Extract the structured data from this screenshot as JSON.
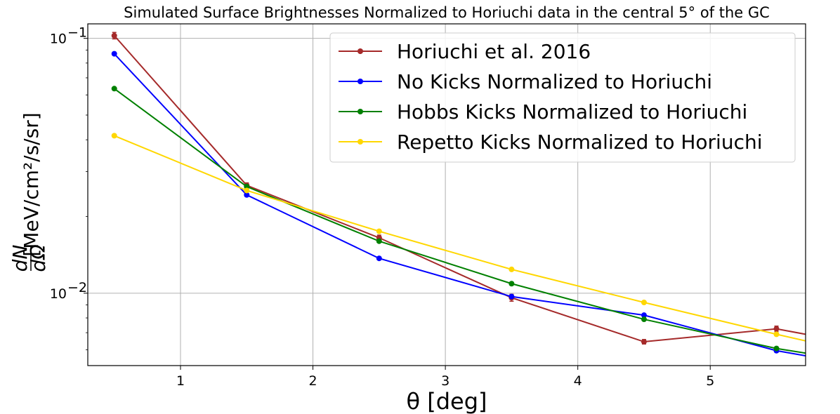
{
  "chart_data": {
    "type": "line",
    "title": "Simulated Surface Brightnesses Normalized to Horiuchi data in the central 5° of the GC",
    "xlabel": "θ [deg]",
    "ylabel": "[MeV/cm²/s/sr]",
    "ylabel_fraction": {
      "numerator": "dN",
      "denominator": "dΩ"
    },
    "xlim": [
      0.3,
      5.72
    ],
    "ylim": [
      0.0052,
      0.114
    ],
    "yscale": "log",
    "grid": true,
    "legend_position": "top-right",
    "x_ticks": [
      1,
      2,
      3,
      4,
      5
    ],
    "y_ticks": [
      {
        "value": 0.1,
        "label_base": "10",
        "label_exp": "−1"
      },
      {
        "value": 0.01,
        "label_base": "10",
        "label_exp": "−2"
      }
    ],
    "series": [
      {
        "name": "Horiuchi et al. 2016",
        "color": "#a52a2a",
        "errorbars": true,
        "x": [
          0.5,
          1.5,
          2.5,
          3.5,
          4.5,
          5.5,
          5.72
        ],
        "y": [
          0.1025,
          0.0265,
          0.0165,
          0.0096,
          0.00645,
          0.00725,
          0.0069
        ],
        "err": [
          0.003,
          0.0006,
          0.0004,
          0.0003,
          0.00013,
          0.00018,
          0
        ],
        "markers": [
          true,
          true,
          true,
          true,
          true,
          true,
          false
        ]
      },
      {
        "name": "No Kicks Normalized to Horiuchi",
        "color": "#0000ff",
        "x": [
          0.5,
          1.5,
          2.5,
          3.5,
          4.5,
          5.5,
          5.72
        ],
        "y": [
          0.087,
          0.0243,
          0.0137,
          0.0097,
          0.0082,
          0.00595,
          0.00568
        ],
        "markers": [
          true,
          true,
          true,
          true,
          true,
          true,
          false
        ]
      },
      {
        "name": "Hobbs Kicks Normalized to Horiuchi",
        "color": "#008000",
        "x": [
          0.5,
          1.5,
          2.5,
          3.5,
          4.5,
          5.5,
          5.72
        ],
        "y": [
          0.0635,
          0.0262,
          0.016,
          0.0109,
          0.0079,
          0.00607,
          0.00582
        ],
        "markers": [
          true,
          true,
          true,
          true,
          true,
          true,
          false
        ]
      },
      {
        "name": "Repetto Kicks Normalized to Horiuchi",
        "color": "#ffd700",
        "x": [
          0.5,
          1.5,
          2.5,
          3.5,
          4.5,
          5.5,
          5.72
        ],
        "y": [
          0.0415,
          0.0253,
          0.0175,
          0.0124,
          0.0092,
          0.0069,
          0.0065
        ],
        "markers": [
          true,
          true,
          true,
          true,
          true,
          true,
          false
        ]
      }
    ]
  }
}
